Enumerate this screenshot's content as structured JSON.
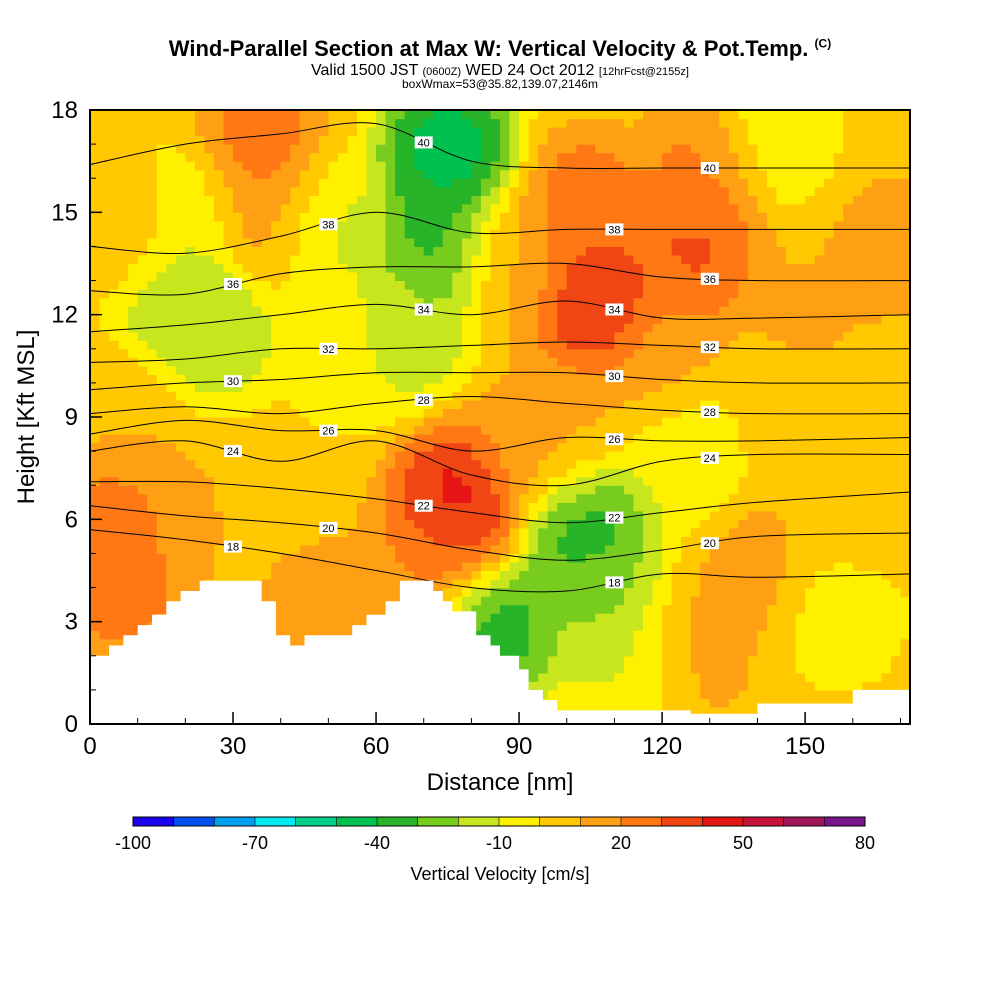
{
  "header": {
    "title": "Wind-Parallel Section at Max W: Vertical Velocity & Pot.Temp.",
    "title_units_tag": "(C)",
    "subtitle_valid": "Valid 1500 JST",
    "subtitle_utc": "(0600Z)",
    "subtitle_date": "WED 24 Oct 2012",
    "subtitle_fcst": "[12hrFcst@2155z]",
    "subtitle2": "boxWmax=53@35.82,139.07,2146m"
  },
  "chart_data": {
    "type": "heatmap",
    "title": "Wind-Parallel Section at Max W: Vertical Velocity & Pot.Temp.",
    "xlabel": "Distance [nm]",
    "ylabel": "Height [Kft MSL]",
    "xlim": [
      0,
      172
    ],
    "ylim": [
      0,
      18
    ],
    "x_ticks": [
      0,
      30,
      60,
      90,
      120,
      150
    ],
    "y_ticks": [
      0,
      3,
      6,
      9,
      12,
      15,
      18
    ],
    "colorbar": {
      "label": "Vertical Velocity [cm/s]",
      "tick_labels": [
        "-100",
        "-70",
        "-40",
        "-10",
        "20",
        "50",
        "80"
      ],
      "levels": [
        -100,
        -90,
        -80,
        -70,
        -60,
        -50,
        -40,
        -30,
        -20,
        -10,
        0,
        10,
        20,
        30,
        40,
        50,
        60,
        70,
        80
      ],
      "colors": [
        "#1a00f0",
        "#0050f0",
        "#00a0f0",
        "#00e8f0",
        "#00d08a",
        "#00c050",
        "#28b428",
        "#78cc1e",
        "#c8e61e",
        "#fff000",
        "#ffc800",
        "#ffa014",
        "#ff7814",
        "#f04614",
        "#e61414",
        "#c8143c",
        "#a0145a",
        "#78148c"
      ]
    },
    "vertical_velocity_cells": [
      {
        "x": 6,
        "y": 5.4,
        "w": 40
      },
      {
        "x": 6,
        "y": 4.2,
        "w": 25
      },
      {
        "x": 14,
        "y": 6.0,
        "w": 15
      },
      {
        "x": 24,
        "y": 5.8,
        "w": 10
      },
      {
        "x": 35,
        "y": 16.8,
        "w": 30
      },
      {
        "x": 37,
        "y": 14.8,
        "w": 20
      },
      {
        "x": 8,
        "y": 14.5,
        "w": 12
      },
      {
        "x": 5,
        "y": 9.0,
        "w": 10
      },
      {
        "x": 17,
        "y": 12.5,
        "w": -20
      },
      {
        "x": 26,
        "y": 11.8,
        "w": -22
      },
      {
        "x": 22,
        "y": 15.0,
        "w": -12
      },
      {
        "x": 48,
        "y": 14.5,
        "w": -15
      },
      {
        "x": 55,
        "y": 11.0,
        "w": -8
      },
      {
        "x": 75,
        "y": 16.8,
        "w": -52
      },
      {
        "x": 73,
        "y": 14.0,
        "w": -38
      },
      {
        "x": 67,
        "y": 11.5,
        "w": -18
      },
      {
        "x": 88,
        "y": 13.5,
        "w": 12
      },
      {
        "x": 91,
        "y": 8.0,
        "w": 18
      },
      {
        "x": 77,
        "y": 6.4,
        "w": 53
      },
      {
        "x": 73,
        "y": 5.0,
        "w": 22
      },
      {
        "x": 85,
        "y": 2.8,
        "w": -40
      },
      {
        "x": 103,
        "y": 5.9,
        "w": -42
      },
      {
        "x": 108,
        "y": 3.6,
        "w": -25
      },
      {
        "x": 114,
        "y": 1.5,
        "w": -12
      },
      {
        "x": 106,
        "y": 12.3,
        "w": 45
      },
      {
        "x": 104,
        "y": 15.0,
        "w": 30
      },
      {
        "x": 100,
        "y": 8.5,
        "w": 12
      },
      {
        "x": 127,
        "y": 14.0,
        "w": 35
      },
      {
        "x": 130,
        "y": 16.5,
        "w": 25
      },
      {
        "x": 120,
        "y": 10.5,
        "w": 15
      },
      {
        "x": 125,
        "y": 8.0,
        "w": -12
      },
      {
        "x": 142,
        "y": 17.3,
        "w": -12
      },
      {
        "x": 150,
        "y": 12.0,
        "w": 12
      },
      {
        "x": 147,
        "y": 9.0,
        "w": 8
      },
      {
        "x": 140,
        "y": 4.5,
        "w": 15
      },
      {
        "x": 126,
        "y": 2.0,
        "w": 15
      },
      {
        "x": 157,
        "y": 3.5,
        "w": -8
      },
      {
        "x": 168,
        "y": 14.0,
        "w": 15
      },
      {
        "x": 160,
        "y": 6.0,
        "w": 8
      },
      {
        "x": 45,
        "y": 3.5,
        "w": 12
      },
      {
        "x": 55,
        "y": 3.2,
        "w": 15
      }
    ],
    "potential_temperature_contours": [
      {
        "level": 18,
        "label": "18",
        "y": [
          5.7,
          5.4,
          5.0,
          4.5,
          4.0,
          3.9,
          4.4,
          4.3,
          4.4
        ]
      },
      {
        "level": 20,
        "label": "20",
        "y": [
          6.4,
          6.1,
          5.9,
          5.6,
          5.1,
          4.8,
          5.1,
          5.5,
          5.6
        ]
      },
      {
        "level": 22,
        "label": "22",
        "y": [
          7.1,
          7.1,
          6.9,
          6.6,
          6.2,
          5.9,
          6.2,
          6.5,
          6.8
        ]
      },
      {
        "level": 24,
        "label": "24",
        "y": [
          8.0,
          8.3,
          7.7,
          8.3,
          7.3,
          7.0,
          7.7,
          7.9,
          7.9
        ]
      },
      {
        "level": 26,
        "label": "26",
        "y": [
          8.5,
          8.9,
          8.6,
          8.6,
          8.0,
          8.4,
          8.3,
          8.3,
          8.4
        ]
      },
      {
        "level": 28,
        "label": "28",
        "y": [
          9.1,
          9.3,
          9.1,
          9.4,
          9.6,
          9.4,
          9.2,
          9.1,
          9.1
        ]
      },
      {
        "level": 30,
        "label": "30",
        "y": [
          9.8,
          10.0,
          10.1,
          10.3,
          10.3,
          10.3,
          10.1,
          10.0,
          10.0
        ]
      },
      {
        "level": 32,
        "label": "32",
        "y": [
          10.6,
          10.7,
          11.0,
          11.0,
          11.1,
          11.2,
          11.1,
          11.0,
          11.0
        ]
      },
      {
        "level": 34,
        "label": "34",
        "y": [
          11.5,
          11.7,
          12.0,
          12.3,
          12.0,
          12.4,
          11.9,
          11.9,
          12.0
        ]
      },
      {
        "level": 36,
        "label": "36",
        "y": [
          12.7,
          12.6,
          13.2,
          13.4,
          13.4,
          13.5,
          13.1,
          13.0,
          13.0
        ]
      },
      {
        "level": 38,
        "label": "38",
        "y": [
          14.0,
          13.8,
          14.3,
          15.0,
          14.4,
          14.5,
          14.5,
          14.5,
          14.5
        ]
      },
      {
        "level": 40,
        "label": "40",
        "y": [
          16.4,
          17.0,
          17.3,
          17.6,
          16.5,
          16.3,
          16.3,
          16.3,
          16.3
        ]
      }
    ],
    "contour_x": [
      0,
      20,
      40,
      60,
      80,
      100,
      120,
      140,
      172
    ],
    "terrain_top_kft": [
      [
        0,
        2.0
      ],
      [
        4,
        2.0
      ],
      [
        4,
        2.3
      ],
      [
        7,
        2.3
      ],
      [
        7,
        2.6
      ],
      [
        10,
        2.6
      ],
      [
        10,
        2.9
      ],
      [
        13,
        2.9
      ],
      [
        13,
        3.2
      ],
      [
        16,
        3.2
      ],
      [
        16,
        3.6
      ],
      [
        19,
        3.6
      ],
      [
        19,
        3.9
      ],
      [
        23,
        3.9
      ],
      [
        23,
        4.2
      ],
      [
        36,
        4.2
      ],
      [
        36,
        3.6
      ],
      [
        39,
        3.6
      ],
      [
        39,
        2.6
      ],
      [
        42,
        2.6
      ],
      [
        42,
        2.3
      ],
      [
        45,
        2.3
      ],
      [
        45,
        2.6
      ],
      [
        55,
        2.6
      ],
      [
        55,
        2.9
      ],
      [
        58,
        2.9
      ],
      [
        58,
        3.2
      ],
      [
        62,
        3.2
      ],
      [
        62,
        3.6
      ],
      [
        65,
        3.6
      ],
      [
        65,
        4.2
      ],
      [
        72,
        4.2
      ],
      [
        72,
        3.9
      ],
      [
        74,
        3.9
      ],
      [
        74,
        3.6
      ],
      [
        76,
        3.6
      ],
      [
        76,
        3.3
      ],
      [
        81,
        3.3
      ],
      [
        81,
        2.6
      ],
      [
        84,
        2.6
      ],
      [
        84,
        2.3
      ],
      [
        86,
        2.3
      ],
      [
        86,
        2.0
      ],
      [
        90,
        2.0
      ],
      [
        90,
        1.6
      ],
      [
        92,
        1.6
      ],
      [
        92,
        1.0
      ],
      [
        95,
        1.0
      ],
      [
        95,
        0.7
      ],
      [
        98,
        0.7
      ],
      [
        98,
        0.4
      ],
      [
        126,
        0.4
      ],
      [
        126,
        0.3
      ],
      [
        140,
        0.3
      ],
      [
        140,
        0.6
      ],
      [
        160,
        0.6
      ],
      [
        160,
        1.0
      ],
      [
        172,
        1.0
      ]
    ]
  }
}
